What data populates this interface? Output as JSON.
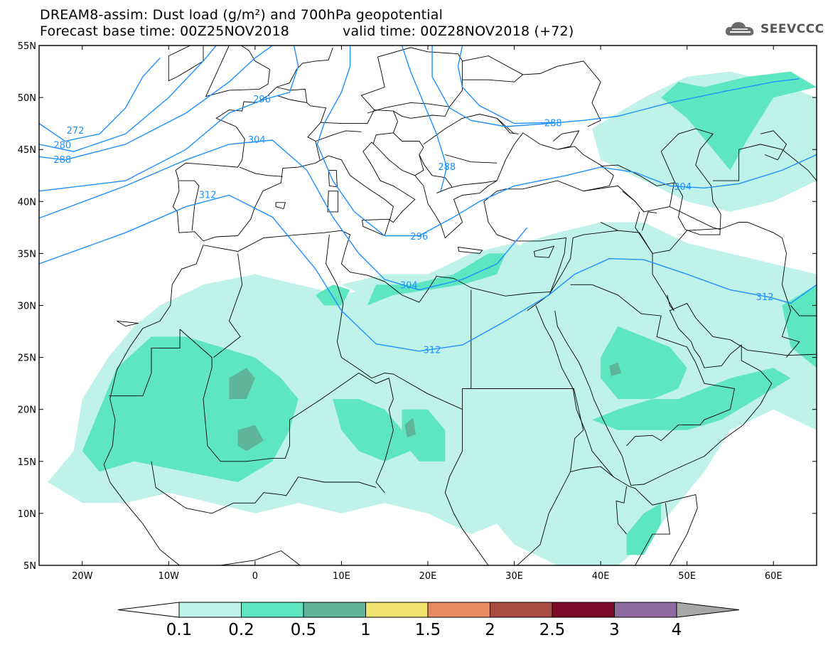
{
  "title": {
    "line1": "DREAM8-assim: Dust load (g/m²) and 700hPa geopotential",
    "line2": "Forecast base time: 00Z25NOV2018",
    "line2b": "valid time: 00Z28NOV2018 (+72)"
  },
  "logo": {
    "text": "SEEVCCC",
    "icon": "cloud-logo-icon"
  },
  "axes": {
    "lat_labels": [
      "55N",
      "50N",
      "45N",
      "40N",
      "35N",
      "30N",
      "25N",
      "20N",
      "15N",
      "10N",
      "5N"
    ],
    "lat_values": [
      55,
      50,
      45,
      40,
      35,
      30,
      25,
      20,
      15,
      10,
      5
    ],
    "lon_labels": [
      "20W",
      "10W",
      "0",
      "10E",
      "20E",
      "30E",
      "40E",
      "50E",
      "60E"
    ],
    "lon_values": [
      -20,
      -10,
      0,
      10,
      20,
      30,
      40,
      50,
      60
    ],
    "lon_range": [
      -25,
      65
    ],
    "lat_range": [
      5,
      55
    ]
  },
  "contours": {
    "color": "#1e90ff",
    "labels": [
      {
        "text": "272",
        "lon": -20.8,
        "lat": 46.8
      },
      {
        "text": "280",
        "lon": -22.3,
        "lat": 45.4
      },
      {
        "text": "288",
        "lon": -22.3,
        "lat": 44.0
      },
      {
        "text": "296",
        "lon": 0.8,
        "lat": 49.8
      },
      {
        "text": "304",
        "lon": 0.2,
        "lat": 45.9
      },
      {
        "text": "312",
        "lon": -5.5,
        "lat": 40.6
      },
      {
        "text": "288",
        "lon": 34.5,
        "lat": 47.5
      },
      {
        "text": "288",
        "lon": 22.2,
        "lat": 43.3
      },
      {
        "text": "296",
        "lon": 19.0,
        "lat": 36.6
      },
      {
        "text": "304",
        "lon": 17.8,
        "lat": 31.9
      },
      {
        "text": "312",
        "lon": 20.5,
        "lat": 25.7
      },
      {
        "text": "304",
        "lon": 49.5,
        "lat": 41.4
      },
      {
        "text": "312",
        "lon": 59.0,
        "lat": 30.8
      }
    ]
  },
  "colorbar": {
    "labels": [
      "0.1",
      "0.2",
      "0.5",
      "1",
      "1.5",
      "2",
      "2.5",
      "3",
      "4"
    ],
    "colors": [
      "#bff2e8",
      "#5ee6c0",
      "#5fb59a",
      "#f2e36f",
      "#e88a62",
      "#a84b40",
      "#7a0a2a",
      "#8e6aa0"
    ],
    "under_color": "#ffffff",
    "over_color": "#a8a8a8"
  },
  "dust_colors": {
    "light": "#bff2e8",
    "medium": "#5ee6c0",
    "dark": "#5fb59a"
  }
}
